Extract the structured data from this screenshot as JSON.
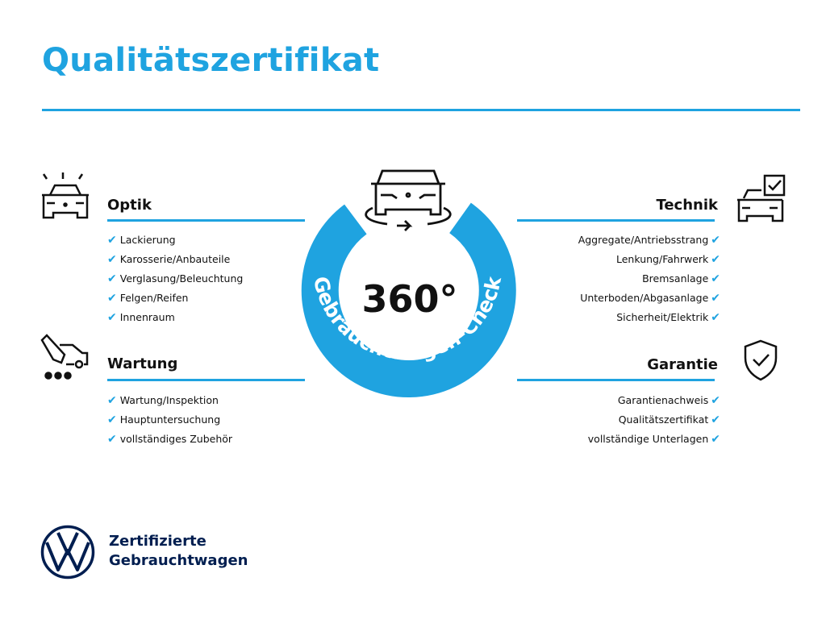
{
  "title": "Qualitätszertifikat",
  "center": {
    "number": "360°",
    "ring_text": "Gebrauchtwagen-Check"
  },
  "sections": {
    "optik": {
      "heading": "Optik",
      "items": [
        "Lackierung",
        "Karosserie/Anbauteile",
        "Verglasung/Beleuchtung",
        "Felgen/Reifen",
        "Innenraum"
      ]
    },
    "wartung": {
      "heading": "Wartung",
      "items": [
        "Wartung/Inspektion",
        "Hauptuntersuchung",
        "vollständiges Zubehör"
      ]
    },
    "technik": {
      "heading": "Technik",
      "items": [
        "Aggregate/Antriebsstrang",
        "Lenkung/Fahrwerk",
        "Bremsanlage",
        "Unterboden/Abgasanlage",
        "Sicherheit/Elektrik"
      ]
    },
    "garantie": {
      "heading": "Garantie",
      "items": [
        "Garantienachweis",
        "Qualitätszertifikat",
        "vollständige Unterlagen"
      ]
    }
  },
  "check_glyph": "✔",
  "footer": {
    "line1": "Zertifizierte",
    "line2": "Gebrauchtwagen",
    "logo": "VW"
  },
  "colors": {
    "accent": "#1fa3e0",
    "brand_navy": "#001e50"
  }
}
